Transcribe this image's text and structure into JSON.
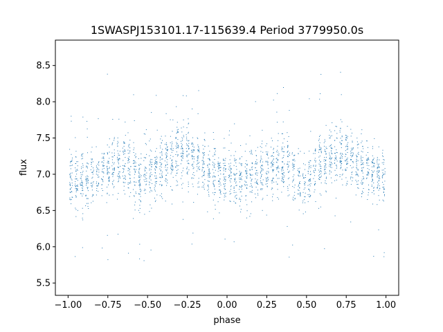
{
  "chart_data": {
    "type": "scatter",
    "title": "1SWASPJ153101.17-115639.4 Period 3779950.0s",
    "xlabel": "phase",
    "ylabel": "flux",
    "xlim": [
      -1.08,
      1.08
    ],
    "ylim": [
      5.33,
      8.85
    ],
    "grid": false,
    "legend": "none",
    "point_color": "#1f77b4",
    "x_ticks": [
      {
        "value": -1.0,
        "label": "−1.00"
      },
      {
        "value": -0.75,
        "label": "−0.75"
      },
      {
        "value": -0.5,
        "label": "−0.50"
      },
      {
        "value": -0.25,
        "label": "−0.25"
      },
      {
        "value": 0.0,
        "label": "0.00"
      },
      {
        "value": 0.25,
        "label": "0.25"
      },
      {
        "value": 0.5,
        "label": "0.50"
      },
      {
        "value": 0.75,
        "label": "0.75"
      },
      {
        "value": 1.0,
        "label": "1.00"
      }
    ],
    "y_ticks": [
      {
        "value": 5.5,
        "label": "5.5"
      },
      {
        "value": 6.0,
        "label": "6.0"
      },
      {
        "value": 6.5,
        "label": "6.5"
      },
      {
        "value": 7.0,
        "label": "7.0"
      },
      {
        "value": 7.5,
        "label": "7.5"
      },
      {
        "value": 8.0,
        "label": "8.0"
      },
      {
        "value": 8.5,
        "label": "8.5"
      }
    ],
    "series": [
      {
        "phase_range": [
          -1.0,
          1.0
        ],
        "phase_period": 1.0,
        "flux_median": 7.05,
        "flux_min": 5.5,
        "flux_max": 8.7,
        "profile": [
          {
            "phase": 0.0,
            "flux": 6.95
          },
          {
            "phase": 0.1,
            "flux": 6.9
          },
          {
            "phase": 0.2,
            "flux": 7.0
          },
          {
            "phase": 0.3,
            "flux": 7.15
          },
          {
            "phase": 0.4,
            "flux": 7.1
          },
          {
            "phase": 0.45,
            "flux": 6.85
          },
          {
            "phase": 0.5,
            "flux": 6.95
          },
          {
            "phase": 0.6,
            "flux": 7.15
          },
          {
            "phase": 0.7,
            "flux": 7.3
          },
          {
            "phase": 0.8,
            "flux": 7.2
          },
          {
            "phase": 0.9,
            "flux": 7.05
          },
          {
            "phase": 1.0,
            "flux": 6.95
          }
        ]
      }
    ]
  }
}
